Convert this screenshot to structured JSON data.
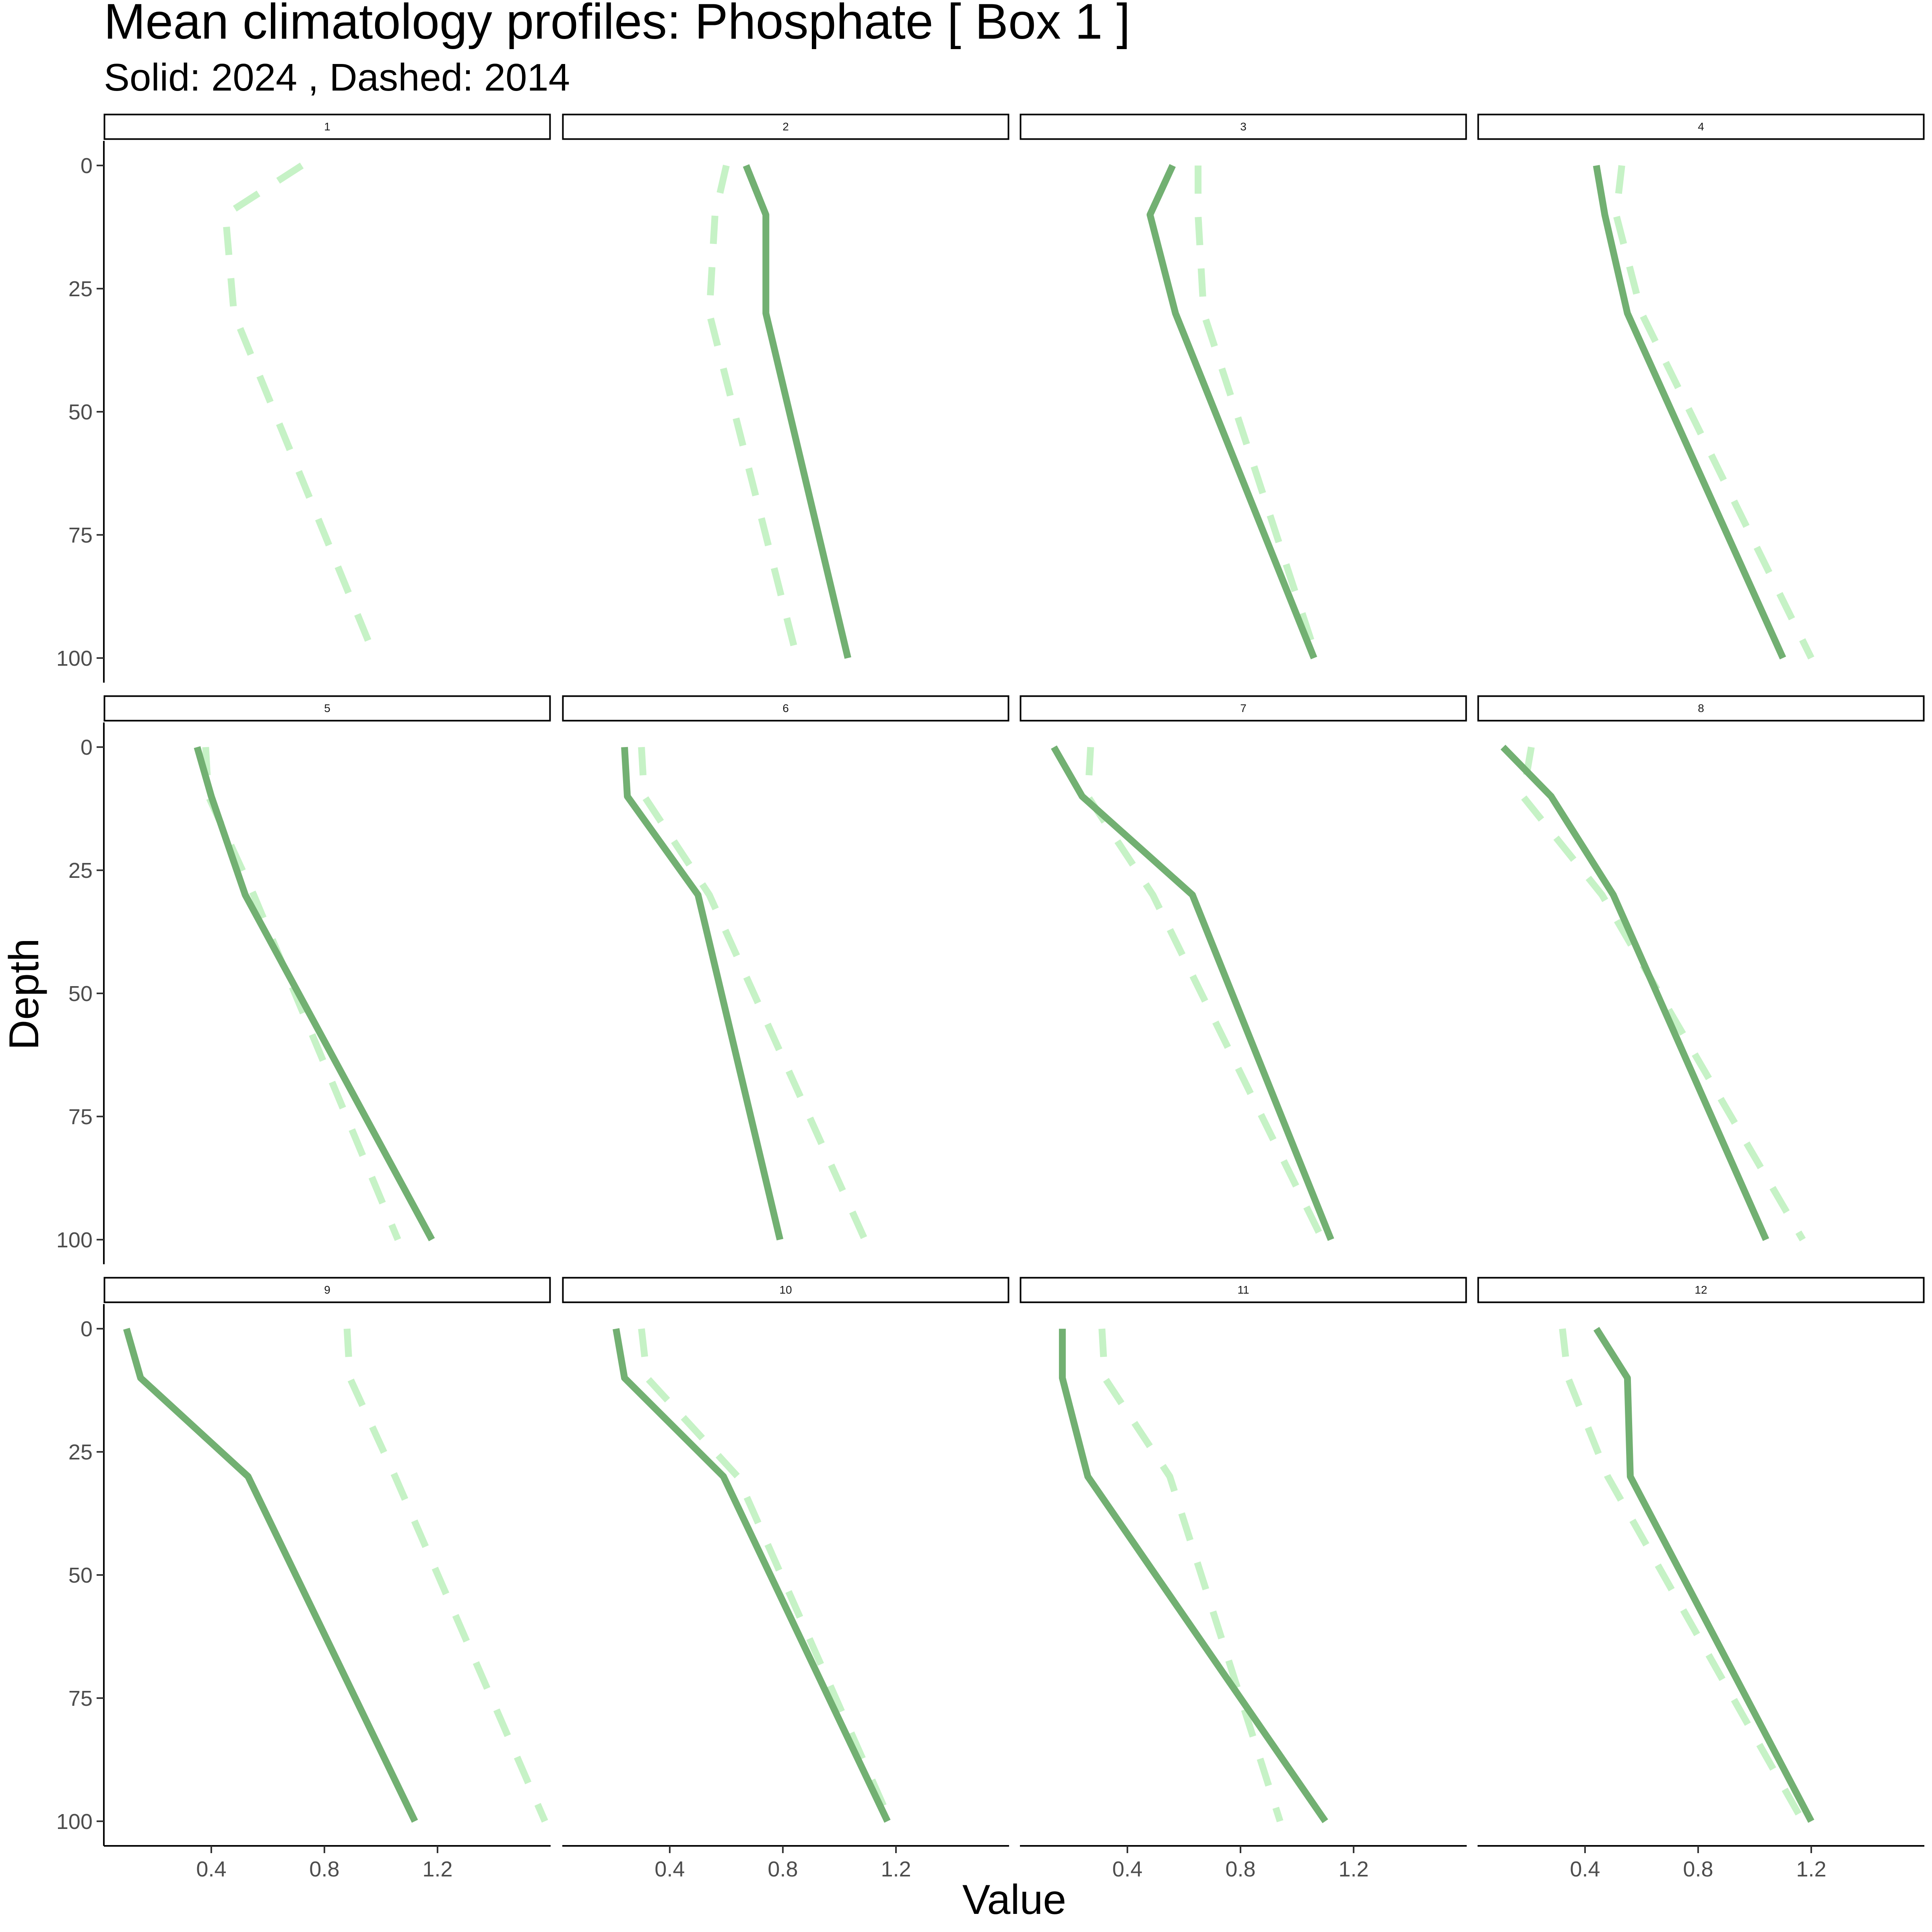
{
  "chart_data": {
    "type": "line",
    "title": "Mean climatology profiles: Phosphate [ Box 1 ]",
    "subtitle": "Solid: 2024 , Dashed: 2014",
    "xlabel": "Value",
    "ylabel": "Depth",
    "x_ticks": [
      "0.4",
      "0.8",
      "1.2"
    ],
    "x_tick_values": [
      0.4,
      0.8,
      1.2
    ],
    "xlim": [
      0.02,
      1.6
    ],
    "y_ticks": [
      "0",
      "25",
      "50",
      "75",
      "100"
    ],
    "y_tick_values": [
      0,
      25,
      50,
      75,
      100
    ],
    "ylim": [
      105,
      -5
    ],
    "y_reversed": true,
    "depths": [
      0,
      10,
      30,
      100
    ],
    "grid": false,
    "legend": "none",
    "line_color_solid": "#72b072",
    "line_color_dashed": "#c6f2c6",
    "panels": [
      {
        "label": "1",
        "solid": null,
        "dashed": [
          0.72,
          0.45,
          0.48,
          0.98
        ]
      },
      {
        "label": "2",
        "solid": [
          0.67,
          0.74,
          0.74,
          1.03
        ],
        "dashed": [
          0.6,
          0.56,
          0.54,
          0.85
        ]
      },
      {
        "label": "3",
        "solid": [
          0.56,
          0.48,
          0.57,
          1.06
        ],
        "dashed": [
          0.65,
          0.65,
          0.67,
          1.07
        ]
      },
      {
        "label": "4",
        "solid": [
          0.44,
          0.47,
          0.55,
          1.1
        ],
        "dashed": [
          0.53,
          0.51,
          0.6,
          1.2
        ]
      },
      {
        "label": "5",
        "solid": [
          0.35,
          0.4,
          0.52,
          1.18
        ],
        "dashed": [
          0.38,
          0.39,
          0.55,
          1.06
        ]
      },
      {
        "label": "6",
        "solid": [
          0.24,
          0.25,
          0.5,
          0.79
        ],
        "dashed": [
          0.3,
          0.31,
          0.54,
          1.09
        ]
      },
      {
        "label": "7",
        "solid": [
          0.14,
          0.24,
          0.63,
          1.12
        ],
        "dashed": [
          0.27,
          0.26,
          0.49,
          1.09
        ]
      },
      {
        "label": "8",
        "solid": [
          0.11,
          0.28,
          0.5,
          1.04
        ],
        "dashed": [
          0.21,
          0.18,
          0.46,
          1.17
        ]
      },
      {
        "label": "9",
        "solid": [
          0.1,
          0.15,
          0.53,
          1.12
        ],
        "dashed": [
          0.88,
          0.89,
          1.05,
          1.58
        ]
      },
      {
        "label": "10",
        "solid": [
          0.21,
          0.24,
          0.59,
          1.17
        ],
        "dashed": [
          0.3,
          0.32,
          0.64,
          1.18
        ]
      },
      {
        "label": "11",
        "solid": [
          0.17,
          0.17,
          0.26,
          1.1
        ],
        "dashed": [
          0.31,
          0.32,
          0.55,
          0.94
        ]
      },
      {
        "label": "12",
        "solid": [
          0.44,
          0.55,
          0.56,
          1.2
        ],
        "dashed": [
          0.32,
          0.34,
          0.48,
          1.17
        ]
      }
    ]
  }
}
